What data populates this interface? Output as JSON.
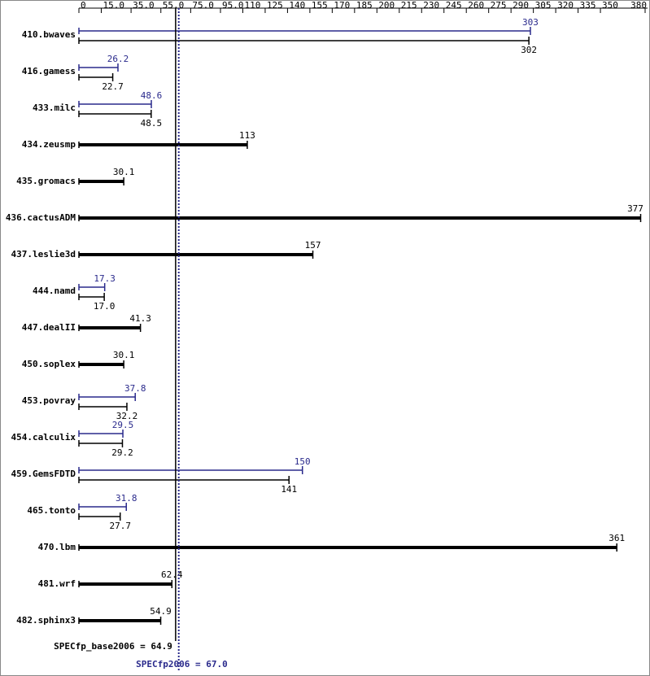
{
  "chart_data": {
    "type": "spec-bar",
    "xlim": [
      0,
      380
    ],
    "xticks": [
      0,
      {
        "value": 15,
        "label": "15.0"
      },
      {
        "value": 35,
        "label": "35.0"
      },
      {
        "value": 55,
        "label": "55.0"
      },
      {
        "value": 75,
        "label": "75.0"
      },
      {
        "value": 95,
        "label": "95.0"
      },
      110,
      125,
      140,
      155,
      170,
      185,
      200,
      215,
      230,
      245,
      260,
      275,
      290,
      305,
      320,
      335,
      350,
      380
    ],
    "categories": [
      "410.bwaves",
      "416.gamess",
      "433.milc",
      "434.zeusmp",
      "435.gromacs",
      "436.cactusADM",
      "437.leslie3d",
      "444.namd",
      "447.dealII",
      "450.soplex",
      "453.povray",
      "454.calculix",
      "459.GemsFDTD",
      "465.tonto",
      "470.lbm",
      "481.wrf",
      "482.sphinx3"
    ],
    "series": [
      {
        "color": "#000000",
        "values": [
          302,
          22.7,
          48.5,
          113,
          30.1,
          377,
          157,
          17.0,
          41.3,
          30.1,
          32.2,
          29.2,
          141,
          27.7,
          361,
          62.4,
          54.9
        ],
        "value_labels": [
          "302",
          "22.7",
          "48.5",
          "113",
          "30.1",
          "377",
          "157",
          "17.0",
          "41.3",
          "30.1",
          "32.2",
          "29.2",
          "141",
          "27.7",
          "361",
          "62.4",
          "54.9"
        ]
      },
      {
        "color": "#2a2a8c",
        "values": [
          303,
          26.2,
          48.6,
          null,
          null,
          null,
          null,
          17.3,
          null,
          null,
          37.8,
          29.5,
          150,
          31.8,
          null,
          null,
          null
        ],
        "value_labels": [
          "303",
          "26.2",
          "48.6",
          null,
          null,
          null,
          null,
          "17.3",
          null,
          null,
          "37.8",
          "29.5",
          "150",
          "31.8",
          null,
          null,
          null
        ]
      }
    ],
    "reference_lines": [
      {
        "label": "SPECfp_base2006 = 64.9",
        "value": 64.9,
        "color": "#000000",
        "style": "solid"
      },
      {
        "label": "SPECfp2006 = 67.0",
        "value": 67.0,
        "color": "#2a2a8c",
        "style": "dotted"
      }
    ]
  }
}
